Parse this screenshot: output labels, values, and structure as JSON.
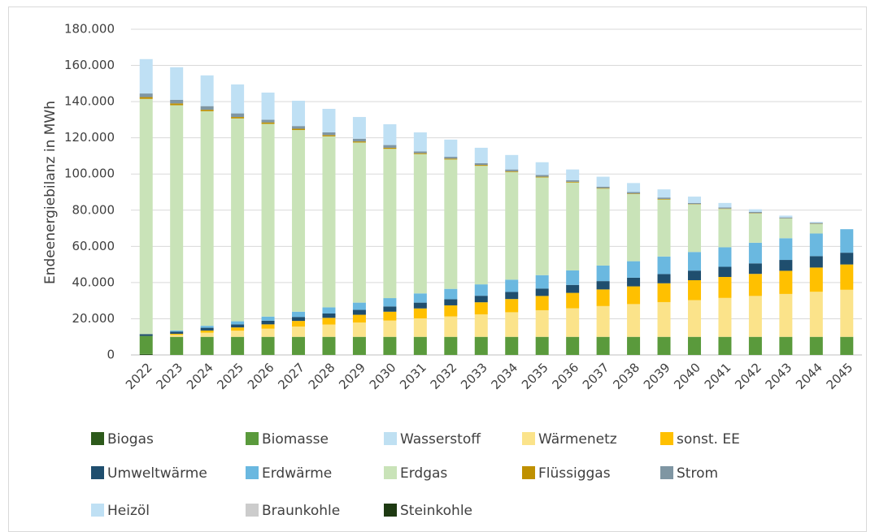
{
  "chart_data": {
    "type": "stacked_bar",
    "y_label": "Endeenergiebilanz in MWh",
    "categories": [
      "2022",
      "2023",
      "2024",
      "2025",
      "2026",
      "2027",
      "2028",
      "2029",
      "2030",
      "2031",
      "2032",
      "2033",
      "2034",
      "2035",
      "2036",
      "2037",
      "2038",
      "2039",
      "2040",
      "2041",
      "2042",
      "2043",
      "2044",
      "2045"
    ],
    "ylim": [
      0,
      180000
    ],
    "yticks": [
      0,
      {
        "value": 20000,
        "label": "20.000"
      },
      {
        "value": 40000,
        "label": "40.000"
      },
      {
        "value": 60000,
        "label": "60.000"
      },
      {
        "value": 80000,
        "label": "80.000"
      },
      {
        "value": 100000,
        "label": "100.000"
      },
      {
        "value": 120000,
        "label": "120.000"
      },
      {
        "value": 140000,
        "label": "140.000"
      },
      {
        "value": 160000,
        "label": "160.000"
      },
      {
        "value": 180000,
        "label": "180.000"
      }
    ],
    "grid": true,
    "legend": "bottom",
    "series": [
      {
        "name": "Biogas",
        "color": "#2d5a1b",
        "values": [
          500,
          0,
          0,
          0,
          0,
          0,
          0,
          0,
          0,
          0,
          0,
          0,
          0,
          0,
          0,
          0,
          0,
          0,
          0,
          0,
          0,
          0,
          0,
          0
        ]
      },
      {
        "name": "Biomasse",
        "color": "#5a9a3c",
        "values": [
          10000,
          10000,
          10000,
          10000,
          10000,
          10000,
          10000,
          10000,
          10000,
          10000,
          10000,
          10000,
          10000,
          10000,
          10000,
          10000,
          10000,
          10000,
          10000,
          10000,
          10000,
          10000,
          10000,
          10000
        ]
      },
      {
        "name": "Wasserstoff",
        "color": "#bfe0f2",
        "values": [
          0,
          0,
          0,
          0,
          0,
          0,
          0,
          0,
          0,
          0,
          0,
          0,
          0,
          0,
          0,
          0,
          0,
          0,
          0,
          0,
          0,
          0,
          0,
          0
        ]
      },
      {
        "name": "Wärmenetz",
        "color": "#fbe38a",
        "values": [
          0,
          1100,
          2300,
          3400,
          4500,
          5700,
          6800,
          7900,
          9000,
          10200,
          11300,
          12400,
          13600,
          14700,
          15800,
          17000,
          18100,
          19200,
          20300,
          21500,
          22600,
          23700,
          24900,
          26000
        ]
      },
      {
        "name": "sonst. EE",
        "color": "#ffc000",
        "values": [
          0,
          600,
          1200,
          1800,
          2400,
          3100,
          3700,
          4300,
          4900,
          5500,
          6100,
          6700,
          7300,
          7900,
          8500,
          9200,
          9800,
          10400,
          11000,
          11600,
          12200,
          12800,
          13400,
          14000
        ]
      },
      {
        "name": "Umweltwärme",
        "color": "#1f4e6e",
        "values": [
          1000,
          1200,
          1500,
          1700,
          2000,
          2200,
          2400,
          2700,
          2900,
          3200,
          3400,
          3600,
          3900,
          4100,
          4400,
          4600,
          4800,
          5100,
          5300,
          5600,
          5800,
          6000,
          6300,
          6500
        ]
      },
      {
        "name": "Erdwärme",
        "color": "#6ab8e0",
        "values": [
          0,
          600,
          1100,
          1700,
          2300,
          2900,
          3400,
          4000,
          4600,
          5100,
          5700,
          6300,
          6800,
          7400,
          8000,
          8600,
          9100,
          9700,
          10300,
          10800,
          11400,
          12000,
          12500,
          13000
        ]
      },
      {
        "name": "Erdgas",
        "color": "#c9e3b8",
        "values": [
          130000,
          124500,
          118600,
          112100,
          106500,
          100400,
          94500,
          88500,
          82500,
          77000,
          71500,
          65500,
          59500,
          54000,
          48600,
          42500,
          37100,
          31500,
          26300,
          21200,
          16200,
          10900,
          5300,
          0
        ]
      },
      {
        "name": "Flüssiggas",
        "color": "#bf9000",
        "values": [
          1000,
          1000,
          800,
          800,
          800,
          700,
          700,
          600,
          600,
          500,
          500,
          500,
          400,
          400,
          400,
          300,
          300,
          300,
          200,
          200,
          200,
          100,
          100,
          0
        ]
      },
      {
        "name": "Strom",
        "color": "#7f96a3",
        "values": [
          2000,
          2000,
          2000,
          2000,
          1500,
          1500,
          1500,
          1500,
          1500,
          1000,
          1000,
          1000,
          1000,
          1000,
          800,
          800,
          800,
          800,
          600,
          600,
          600,
          500,
          500,
          0
        ]
      },
      {
        "name": "Heizöl",
        "color": "#bfe0f4",
        "values": [
          19000,
          18000,
          17000,
          16000,
          15000,
          14000,
          13000,
          12000,
          11500,
          10500,
          9500,
          8500,
          8000,
          7000,
          6000,
          5500,
          5000,
          4500,
          3500,
          2500,
          1500,
          1000,
          500,
          0
        ]
      },
      {
        "name": "Braunkohle",
        "color": "#cccccc",
        "values": [
          0,
          0,
          0,
          0,
          0,
          0,
          0,
          0,
          0,
          0,
          0,
          0,
          0,
          0,
          0,
          0,
          0,
          0,
          0,
          0,
          0,
          0,
          0,
          0
        ]
      },
      {
        "name": "Steinkohle",
        "color": "#1e3a12",
        "values": [
          0,
          0,
          0,
          0,
          0,
          0,
          0,
          0,
          0,
          0,
          0,
          0,
          0,
          0,
          0,
          0,
          0,
          0,
          0,
          0,
          0,
          0,
          0,
          0
        ]
      }
    ]
  }
}
